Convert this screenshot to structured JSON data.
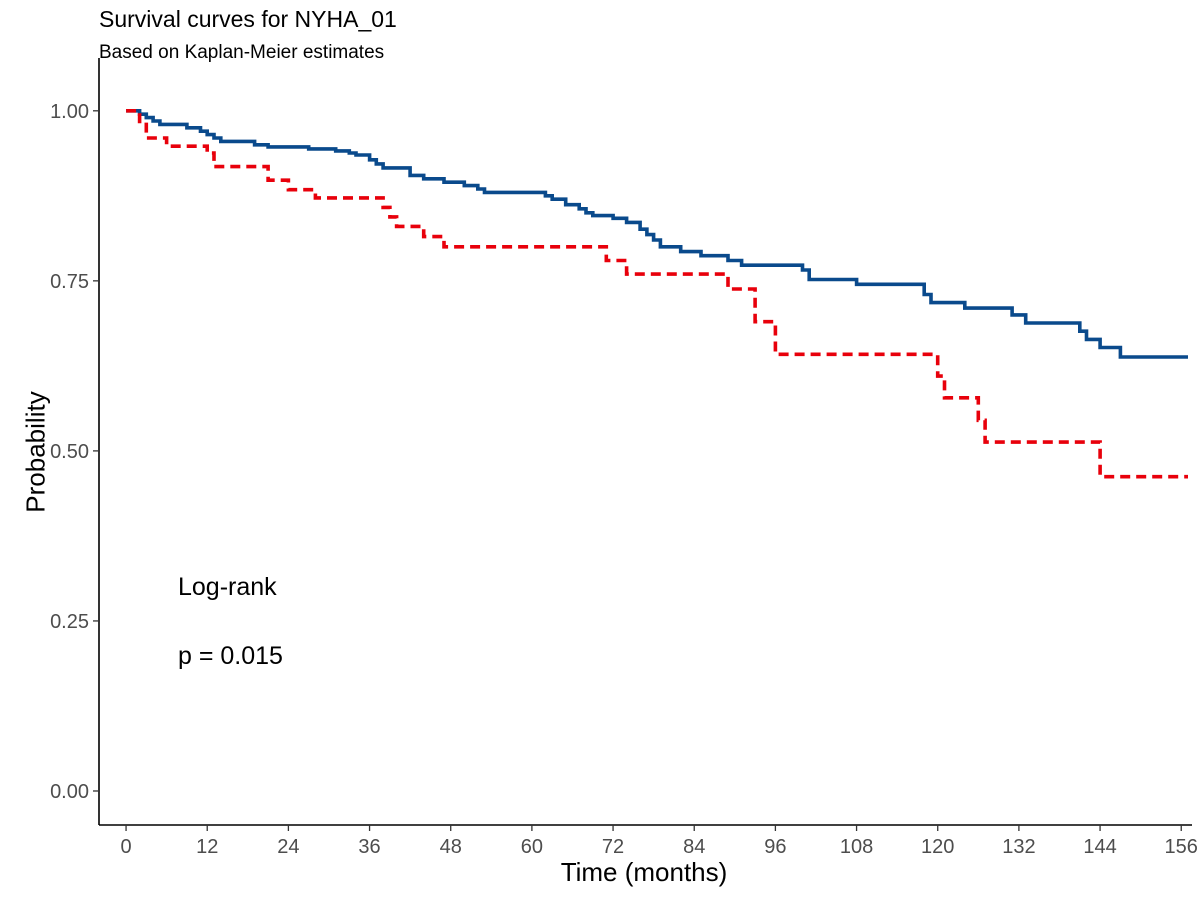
{
  "chart_data": {
    "type": "line",
    "title": "Survival curves for NYHA_01",
    "subtitle": "Based on Kaplan-Meier estimates",
    "xlabel": "Time (months)",
    "ylabel": "Probability",
    "xlim": [
      -4,
      157
    ],
    "ylim": [
      -0.05,
      1.06
    ],
    "x_ticks": [
      0,
      12,
      24,
      36,
      48,
      60,
      72,
      84,
      96,
      108,
      120,
      132,
      144,
      156
    ],
    "y_ticks": [
      0.0,
      0.25,
      0.5,
      0.75,
      1.0
    ],
    "y_tick_labels": [
      "0.00",
      "0.25",
      "0.50",
      "0.75",
      "1.00"
    ],
    "grid": false,
    "annotations": [
      "Log-rank",
      "p = 0.015"
    ],
    "series": [
      {
        "color": "#0a4a8c",
        "linestyle": "solid",
        "step": true,
        "points": [
          [
            0,
            1.0
          ],
          [
            2,
            0.995
          ],
          [
            3,
            0.99
          ],
          [
            4,
            0.985
          ],
          [
            5,
            0.98
          ],
          [
            9,
            0.975
          ],
          [
            11,
            0.97
          ],
          [
            12,
            0.965
          ],
          [
            13,
            0.96
          ],
          [
            14,
            0.955
          ],
          [
            19,
            0.95
          ],
          [
            21,
            0.947
          ],
          [
            27,
            0.944
          ],
          [
            31,
            0.941
          ],
          [
            33,
            0.938
          ],
          [
            34,
            0.935
          ],
          [
            36,
            0.928
          ],
          [
            37,
            0.922
          ],
          [
            38,
            0.916
          ],
          [
            42,
            0.905
          ],
          [
            44,
            0.9
          ],
          [
            47,
            0.895
          ],
          [
            50,
            0.89
          ],
          [
            52,
            0.885
          ],
          [
            53,
            0.88
          ],
          [
            62,
            0.875
          ],
          [
            63,
            0.87
          ],
          [
            65,
            0.862
          ],
          [
            67,
            0.856
          ],
          [
            68,
            0.85
          ],
          [
            69,
            0.846
          ],
          [
            72,
            0.842
          ],
          [
            74,
            0.836
          ],
          [
            76,
            0.826
          ],
          [
            77,
            0.818
          ],
          [
            78,
            0.81
          ],
          [
            79,
            0.8
          ],
          [
            82,
            0.793
          ],
          [
            85,
            0.787
          ],
          [
            89,
            0.78
          ],
          [
            91,
            0.773
          ],
          [
            100,
            0.766
          ],
          [
            101,
            0.752
          ],
          [
            108,
            0.745
          ],
          [
            118,
            0.73
          ],
          [
            119,
            0.718
          ],
          [
            124,
            0.71
          ],
          [
            131,
            0.7
          ],
          [
            133,
            0.688
          ],
          [
            141,
            0.676
          ],
          [
            142,
            0.664
          ],
          [
            144,
            0.652
          ],
          [
            147,
            0.638
          ],
          [
            157,
            0.638
          ]
        ]
      },
      {
        "color": "#e8000b",
        "linestyle": "dashed",
        "step": true,
        "points": [
          [
            0,
            1.0
          ],
          [
            2,
            0.98
          ],
          [
            3,
            0.96
          ],
          [
            6,
            0.948
          ],
          [
            12,
            0.938
          ],
          [
            13,
            0.918
          ],
          [
            21,
            0.898
          ],
          [
            24,
            0.884
          ],
          [
            28,
            0.872
          ],
          [
            38,
            0.858
          ],
          [
            39,
            0.844
          ],
          [
            40,
            0.83
          ],
          [
            44,
            0.815
          ],
          [
            47,
            0.8
          ],
          [
            71,
            0.78
          ],
          [
            74,
            0.76
          ],
          [
            89,
            0.738
          ],
          [
            93,
            0.69
          ],
          [
            96,
            0.642
          ],
          [
            120,
            0.61
          ],
          [
            121,
            0.578
          ],
          [
            126,
            0.545
          ],
          [
            127,
            0.513
          ],
          [
            144,
            0.462
          ],
          [
            157,
            0.462
          ]
        ]
      }
    ]
  }
}
